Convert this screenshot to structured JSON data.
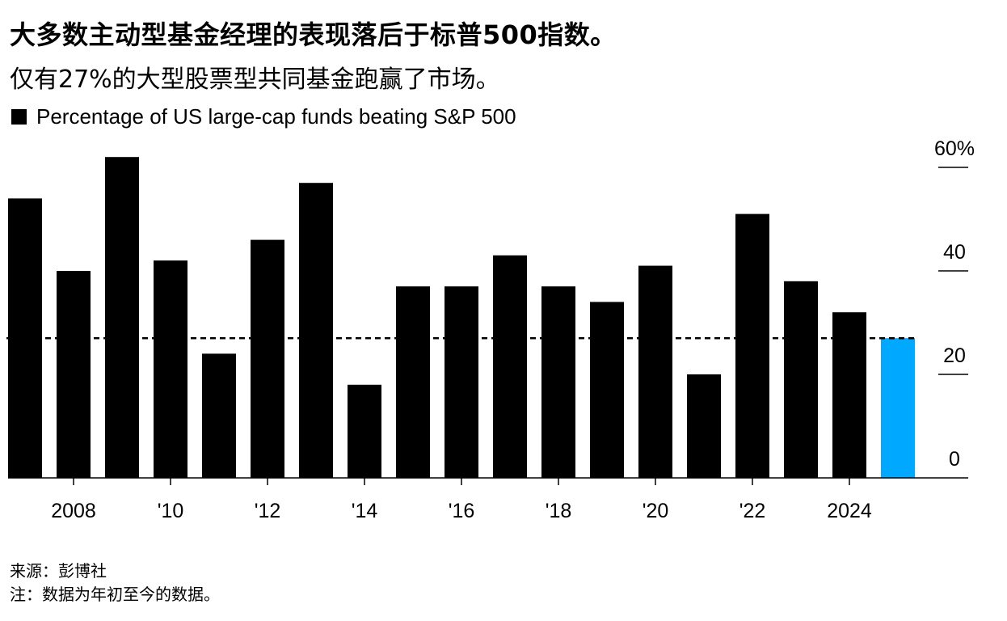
{
  "title": "大多数主动型基金经理的表现落后于标普500指数。",
  "subtitle": "仅有27%的大型股票型共同基金跑赢了市场。",
  "legend": {
    "label": "Percentage of US large-cap funds beating S&P 500"
  },
  "source": "来源：彭博社",
  "note": "注：数据为年初至今的数据。",
  "colors": {
    "bar": "#000000",
    "highlight": "#00a8ff",
    "axis": "#000000"
  },
  "chart_data": {
    "type": "bar",
    "title": "仅有27%的大型股票型共同基金跑赢了市场。",
    "series": [
      {
        "name": "Percentage of US large-cap funds beating S&P 500",
        "years": [
          2007,
          2008,
          2009,
          2010,
          2011,
          2012,
          2013,
          2014,
          2015,
          2016,
          2017,
          2018,
          2019,
          2020,
          2021,
          2022,
          2023,
          2024,
          2025
        ],
        "values": [
          54,
          40,
          62,
          42,
          24,
          46,
          57,
          18,
          37,
          37,
          43,
          37,
          34,
          41,
          20,
          51,
          38,
          32,
          27
        ]
      }
    ],
    "highlight_year": 2025,
    "reference_line": 27,
    "ylim": [
      0,
      60
    ],
    "yticks": [
      0,
      20,
      40,
      60
    ],
    "ytick_labels": [
      "0",
      "20",
      "40",
      "60%"
    ],
    "xticks": [
      2008,
      2010,
      2012,
      2014,
      2016,
      2018,
      2020,
      2022,
      2024
    ],
    "xtick_labels": [
      "2008",
      "'10",
      "'12",
      "'14",
      "'16",
      "'18",
      "'20",
      "'22",
      "2024"
    ],
    "xlabel": "",
    "ylabel": ""
  }
}
